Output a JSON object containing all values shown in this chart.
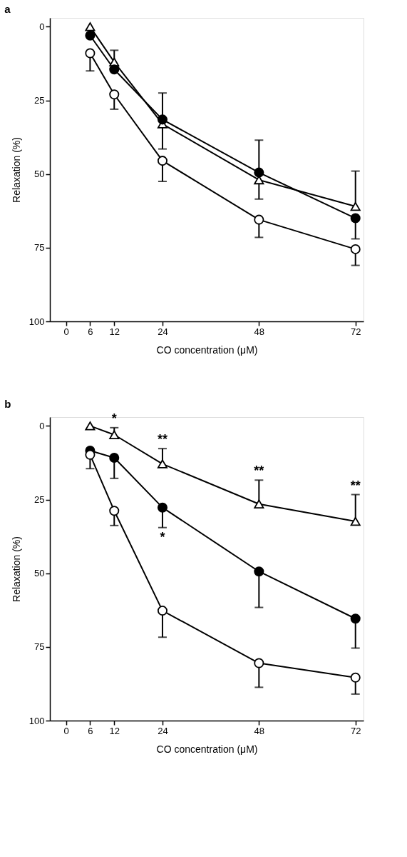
{
  "chart_data": [
    {
      "type": "line",
      "title": "a",
      "xlabel": "CO concentration (μM)",
      "ylabel": "Relaxation (%)",
      "x": [
        6,
        12,
        24,
        48,
        72
      ],
      "xlim": [
        -4,
        74
      ],
      "ylim": [
        100,
        -3
      ],
      "xticks": [
        0,
        6,
        12,
        24,
        48,
        72
      ],
      "yticks": [
        0,
        25,
        50,
        75,
        100
      ],
      "grid": false,
      "line_style": "solid",
      "series": [
        {
          "color": "#ffffff",
          "marker": "triangle",
          "values": [
            0,
            12,
            33,
            52,
            61
          ],
          "errors": [
            null,
            [
              8,
              12
            ],
            null,
            [
              52,
              58.5
            ],
            [
              49,
              61
            ]
          ]
        },
        {
          "color": "#000000",
          "marker": "circle",
          "values": [
            3,
            14.5,
            31.5,
            49.5,
            65
          ],
          "errors": [
            null,
            null,
            [
              22.5,
              41.5
            ],
            [
              38.5,
              49.5
            ],
            [
              65,
              72
            ]
          ]
        },
        {
          "color": "#ffffff",
          "marker": "circle",
          "values": [
            9,
            23,
            45.5,
            65.5,
            75.5
          ],
          "errors": [
            [
              9,
              15
            ],
            [
              23,
              28
            ],
            [
              45.5,
              52.5
            ],
            [
              65.5,
              71.5
            ],
            [
              75.5,
              81
            ]
          ]
        }
      ]
    },
    {
      "type": "line",
      "title": "b",
      "xlabel": "CO concentration (μM)",
      "ylabel": "Relaxation (%)",
      "x": [
        6,
        12,
        24,
        48,
        72
      ],
      "xlim": [
        -4,
        74
      ],
      "ylim": [
        100,
        -3
      ],
      "xticks": [
        0,
        6,
        12,
        24,
        48,
        72
      ],
      "yticks": [
        0,
        25,
        50,
        75,
        100
      ],
      "grid": false,
      "line_style": "solid",
      "series": [
        {
          "color": "#ffffff",
          "marker": "triangle",
          "values": [
            0,
            3,
            12.9,
            26.5,
            32.4
          ],
          "errors": [
            null,
            [
              0.6,
              3
            ],
            [
              7.7,
              12.9
            ],
            [
              18.4,
              26.5
            ],
            [
              23.3,
              32.4
            ]
          ]
        },
        {
          "color": "#000000",
          "marker": "circle",
          "values": [
            8.4,
            10.8,
            27.7,
            49.4,
            65.4
          ],
          "errors": [
            null,
            [
              10.8,
              17.8
            ],
            [
              27.7,
              34.5
            ],
            [
              49.4,
              61.6
            ],
            [
              65.4,
              75.4
            ]
          ]
        },
        {
          "color": "#ffffff",
          "marker": "circle",
          "values": [
            9.8,
            28.8,
            62.7,
            80.5,
            85.4
          ],
          "errors": [
            [
              9.8,
              14.5
            ],
            [
              28.8,
              33.8
            ],
            [
              62.7,
              71.7
            ],
            [
              80.5,
              88.7
            ],
            [
              85.4,
              91
            ]
          ]
        }
      ],
      "annotations": [
        {
          "text": "*",
          "x": 12,
          "y": 0.6
        },
        {
          "text": "**",
          "x": 24,
          "y": 7.7
        },
        {
          "text": "**",
          "x": 48,
          "y": 18.4
        },
        {
          "text": "**",
          "x": 72,
          "y": 23.3
        },
        {
          "text": "*",
          "x": 24,
          "y": 34.5
        }
      ]
    }
  ]
}
